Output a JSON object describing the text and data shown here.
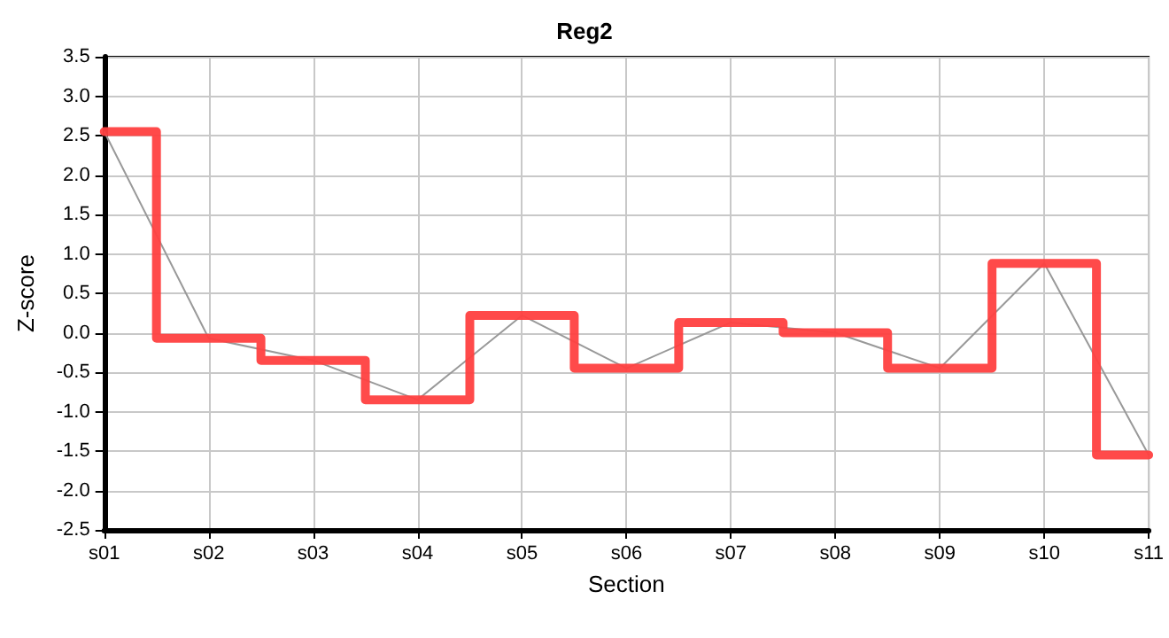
{
  "chart_data": {
    "type": "step",
    "title": "Reg2",
    "xlabel": "Section",
    "ylabel": "Z-score",
    "categories": [
      "s01",
      "s02",
      "s03",
      "s04",
      "s05",
      "s06",
      "s07",
      "s08",
      "s09",
      "s10",
      "s11"
    ],
    "series": [
      {
        "type": "line",
        "color": "#999999",
        "values": [
          2.55,
          -0.07,
          -0.35,
          -0.85,
          0.22,
          -0.45,
          0.13,
          0.0,
          -0.45,
          0.88,
          -1.55
        ]
      },
      {
        "color": "#ff4040",
        "values": [
          2.55,
          -0.07,
          -0.35,
          -0.85,
          0.22,
          -0.45,
          0.13,
          0.0,
          -0.45,
          0.88,
          -1.55
        ]
      }
    ],
    "ylim": [
      -2.5,
      3.5
    ],
    "yticks": [
      {
        "value": -2.5,
        "label": "-2.5"
      },
      {
        "value": -2,
        "label": "-2.0"
      },
      {
        "value": -1.5,
        "label": "-1.5"
      },
      {
        "value": -1,
        "label": "-1.0"
      },
      {
        "value": -0.5,
        "label": "-0.5"
      },
      {
        "value": 0,
        "label": "0.0"
      },
      {
        "value": 0.5,
        "label": "0.5"
      },
      {
        "value": 1,
        "label": "1.0"
      },
      {
        "value": 1.5,
        "label": "1.5"
      },
      {
        "value": 2,
        "label": "2.0"
      },
      {
        "value": 2.5,
        "label": "2.5"
      },
      {
        "value": 3,
        "label": "3.0"
      },
      {
        "value": 3.5,
        "label": "3.5"
      }
    ],
    "grid": true,
    "marker": "none",
    "line_style": "solid"
  }
}
